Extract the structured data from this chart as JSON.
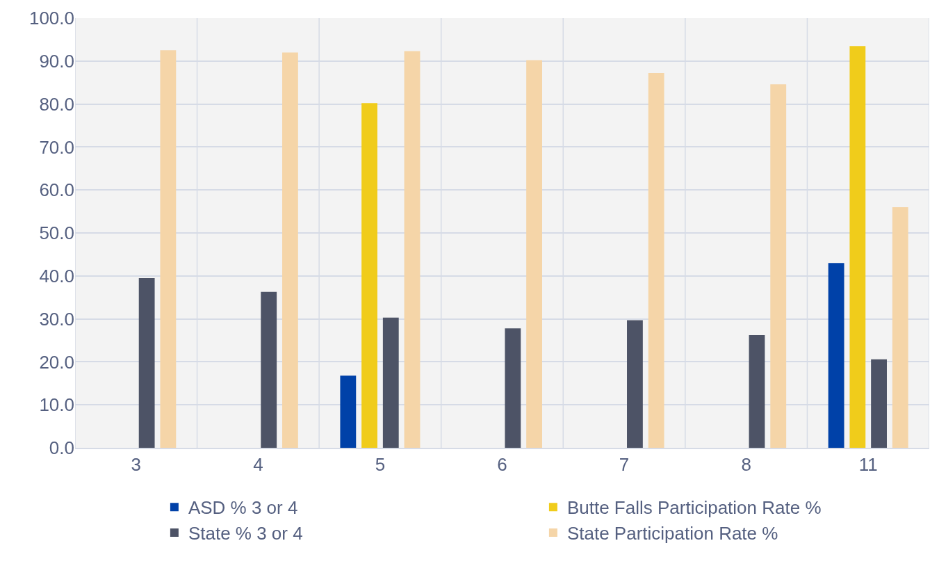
{
  "chart_data": {
    "type": "bar",
    "categories": [
      "3",
      "4",
      "5",
      "6",
      "7",
      "8",
      "11"
    ],
    "series": [
      {
        "name": "ASD % 3 or 4",
        "color": "#0041a8",
        "values": [
          null,
          null,
          16.8,
          null,
          null,
          null,
          43.0
        ]
      },
      {
        "name": "Butte Falls Participation Rate %",
        "color": "#f0cc1b",
        "values": [
          null,
          null,
          80.2,
          null,
          null,
          null,
          93.5
        ]
      },
      {
        "name": "State % 3 or 4",
        "color": "#4d5366",
        "values": [
          39.5,
          36.3,
          30.3,
          27.8,
          29.7,
          26.2,
          20.6
        ]
      },
      {
        "name": "State Participation Rate %",
        "color": "#f5d5a8",
        "values": [
          92.5,
          92.0,
          92.3,
          90.2,
          87.2,
          84.6,
          56.0
        ]
      }
    ],
    "ylim": [
      0,
      100
    ],
    "yticks": [
      {
        "value": 0,
        "label": "0.0"
      },
      {
        "value": 10,
        "label": "10.0"
      },
      {
        "value": 20,
        "label": "20.0"
      },
      {
        "value": 30,
        "label": "30.0"
      },
      {
        "value": 40,
        "label": "40.0"
      },
      {
        "value": 50,
        "label": "50.0"
      },
      {
        "value": 60,
        "label": "60.0"
      },
      {
        "value": 70,
        "label": "70.0"
      },
      {
        "value": 80,
        "label": "80.0"
      },
      {
        "value": 90,
        "label": "90.0"
      },
      {
        "value": 100,
        "label": "100.0"
      }
    ],
    "grid": true,
    "legend": "bottom"
  }
}
